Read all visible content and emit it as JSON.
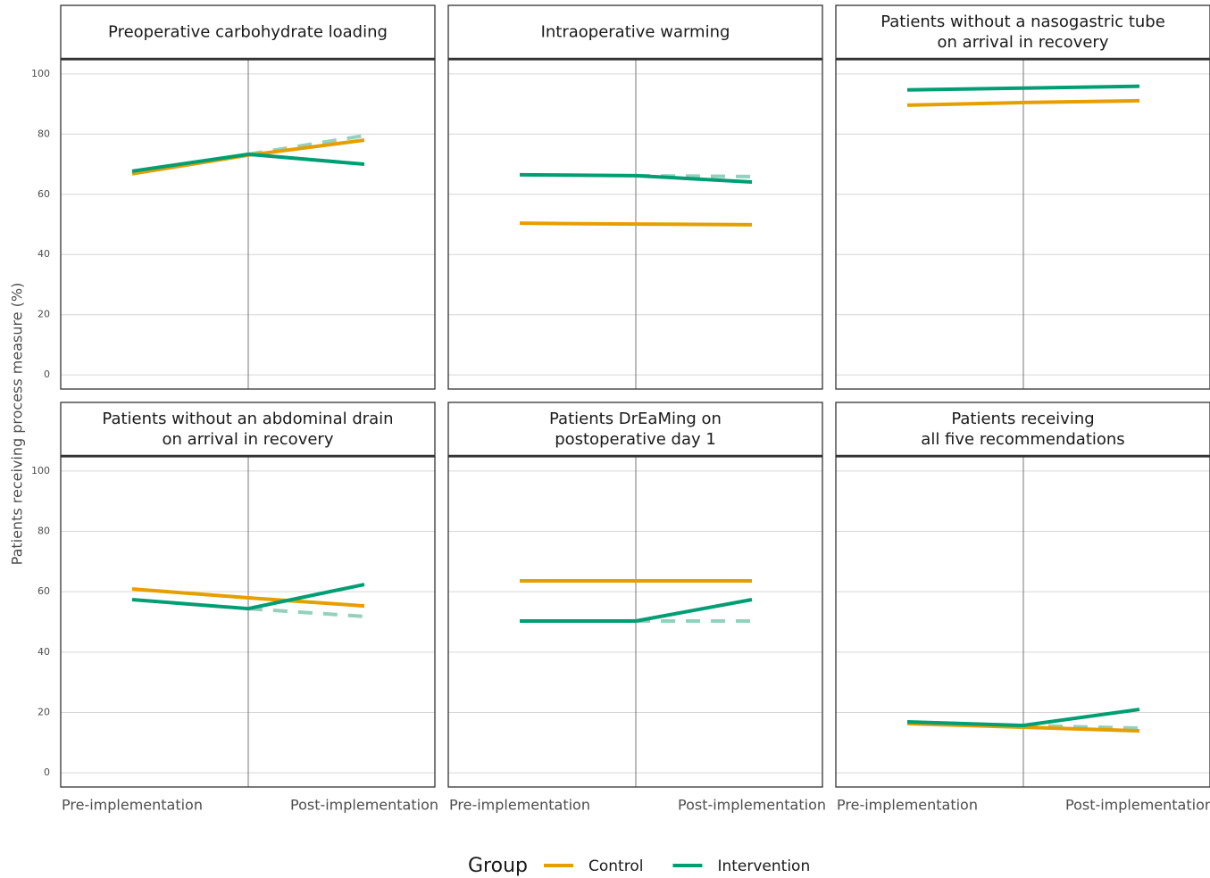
{
  "y_label": "Patients receiving process measure (%)",
  "legend_title": "Group",
  "categories": [
    "Pre-implementation",
    null,
    "Post-implementation"
  ],
  "chart_data": [
    {
      "type": "line",
      "title": [
        "Preoperative carbohydrate loading"
      ],
      "ylim": [
        -4.7,
        104.7
      ],
      "yticks": [
        0,
        20,
        40,
        60,
        80,
        100
      ],
      "grid": true,
      "series": [
        {
          "color": "#93d1bd",
          "dashed": true,
          "values": [
            null,
            73.3,
            79.5
          ]
        },
        {
          "name": "Control",
          "color": "#E69F00",
          "values": [
            66.8,
            73.0,
            78.0
          ]
        },
        {
          "name": "Intervention",
          "color": "#009E73",
          "values": [
            67.7,
            73.3,
            70.0
          ]
        }
      ]
    },
    {
      "type": "line",
      "title": [
        "Intraoperative warming"
      ],
      "ylim": [
        -4.7,
        104.7
      ],
      "yticks": [
        0,
        20,
        40,
        60,
        80,
        100
      ],
      "grid": true,
      "series": [
        {
          "color": "#93d1bd",
          "dashed": true,
          "values": [
            null,
            66.2,
            65.9
          ]
        },
        {
          "name": "Control",
          "color": "#E69F00",
          "values": [
            50.4,
            50.1,
            49.9
          ]
        },
        {
          "name": "Intervention",
          "color": "#009E73",
          "values": [
            66.5,
            66.2,
            64.1
          ]
        }
      ]
    },
    {
      "type": "line",
      "title": [
        "Patients without a nasogastric tube",
        "on arrival in recovery"
      ],
      "ylim": [
        -4.7,
        104.7
      ],
      "yticks": [
        0,
        20,
        40,
        60,
        80,
        100
      ],
      "grid": true,
      "series": [
        {
          "name": "Control",
          "color": "#E69F00",
          "values": [
            89.6,
            90.5,
            91.1
          ]
        },
        {
          "name": "Intervention",
          "color": "#009E73",
          "values": [
            94.7,
            95.3,
            95.9
          ]
        }
      ]
    },
    {
      "type": "line",
      "title": [
        "Patients without an abdominal drain",
        "on arrival in recovery"
      ],
      "ylim": [
        -4.7,
        104.7
      ],
      "yticks": [
        0,
        20,
        40,
        60,
        80,
        100
      ],
      "grid": true,
      "series": [
        {
          "color": "#93d1bd",
          "dashed": true,
          "values": [
            null,
            54.4,
            51.8
          ]
        },
        {
          "name": "Control",
          "color": "#E69F00",
          "values": [
            60.9,
            58.0,
            55.3
          ]
        },
        {
          "name": "Intervention",
          "color": "#009E73",
          "values": [
            57.4,
            54.4,
            62.4
          ]
        }
      ]
    },
    {
      "type": "line",
      "title": [
        "Patients DrEaMing on",
        "postoperative day 1"
      ],
      "ylim": [
        -4.7,
        104.7
      ],
      "yticks": [
        0,
        20,
        40,
        60,
        80,
        100
      ],
      "grid": true,
      "series": [
        {
          "color": "#93d1bd",
          "dashed": true,
          "values": [
            null,
            50.3,
            50.3
          ]
        },
        {
          "name": "Control",
          "color": "#E69F00",
          "values": [
            63.6,
            63.6,
            63.6
          ]
        },
        {
          "name": "Intervention",
          "color": "#009E73",
          "values": [
            50.3,
            50.3,
            57.4
          ]
        }
      ]
    },
    {
      "type": "line",
      "title": [
        "Patients receiving",
        "all five recommendations"
      ],
      "ylim": [
        -4.7,
        104.7
      ],
      "yticks": [
        0,
        20,
        40,
        60,
        80,
        100
      ],
      "grid": true,
      "series": [
        {
          "color": "#93d1bd",
          "dashed": true,
          "values": [
            null,
            15.7,
            14.8
          ]
        },
        {
          "name": "Control",
          "color": "#E69F00",
          "values": [
            16.3,
            15.1,
            13.9
          ]
        },
        {
          "name": "Intervention",
          "color": "#009E73",
          "values": [
            16.9,
            15.7,
            21.0
          ]
        }
      ]
    }
  ]
}
